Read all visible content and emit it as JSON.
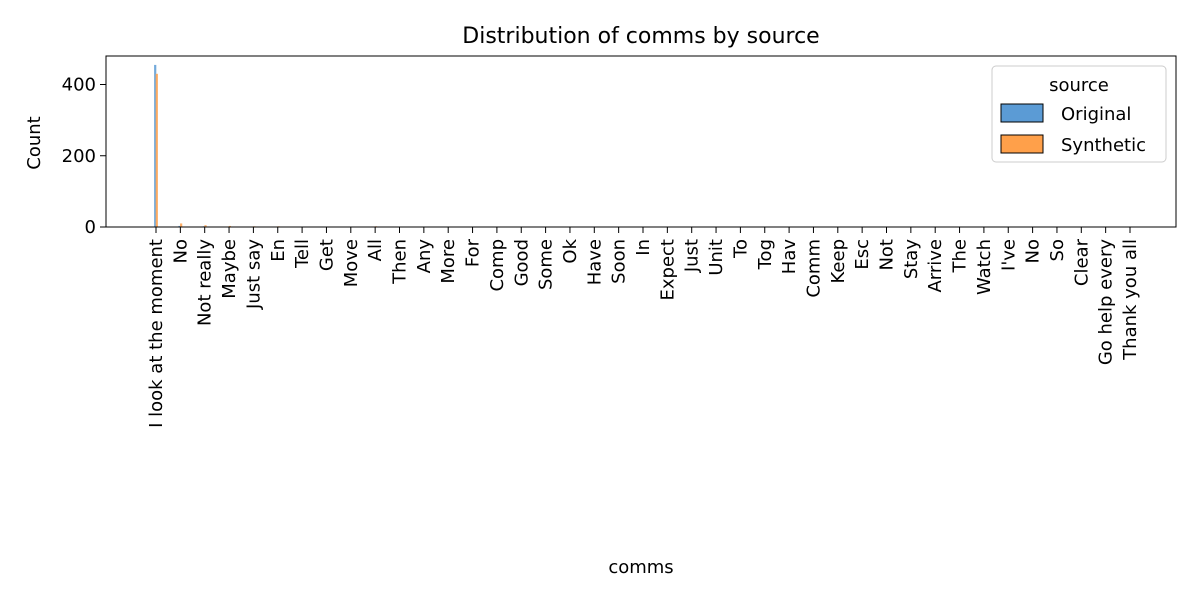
{
  "chart_data": {
    "type": "bar",
    "title": "Distribution of comms by source",
    "xlabel": "comms",
    "ylabel": "Count",
    "ylim": [
      0,
      480
    ],
    "y_ticks": [
      0,
      200,
      400
    ],
    "grid": false,
    "legend": {
      "title": "source",
      "placement": "top-right",
      "entries": [
        "Original",
        "Synthetic"
      ]
    },
    "colors": {
      "Original": "#5b9bd5",
      "Synthetic": "#ffa04a",
      "Original_line": "#4a7fae"
    },
    "note": "Nearly all mass is in the first category; remaining categories are near zero. Tick labels along the x-axis are dense and overlapping; only partially legible.",
    "categories": [
      "I look at the moment",
      "No",
      "Not really",
      "Maybe",
      "Just say",
      "En",
      "Tell",
      "Get",
      "Move",
      "All",
      "Then",
      "Any",
      "More",
      "For",
      "Comp",
      "Good",
      "Some",
      "Ok",
      "Have",
      "Soon",
      "In",
      "Expect",
      "Just",
      "Unit",
      "To",
      "Tog",
      "Hav",
      "Comm",
      "Keep",
      "Esc",
      "Not",
      "Stay",
      "Arrive",
      "The",
      "Watch",
      "I've",
      "No",
      "So",
      "Clear",
      "Go help every",
      "Thank you all"
    ],
    "series": [
      {
        "name": "Original",
        "values": [
          455,
          3,
          2,
          1,
          1,
          1,
          1,
          1,
          1,
          1,
          1,
          1,
          1,
          1,
          1,
          1,
          1,
          1,
          1,
          1,
          1,
          1,
          1,
          1,
          1,
          1,
          1,
          1,
          1,
          1,
          1,
          1,
          1,
          1,
          1,
          1,
          1,
          1,
          1,
          1,
          1
        ]
      },
      {
        "name": "Synthetic",
        "values": [
          430,
          10,
          5,
          3,
          2,
          2,
          1,
          1,
          1,
          2,
          1,
          1,
          1,
          1,
          1,
          1,
          1,
          1,
          1,
          1,
          1,
          1,
          1,
          1,
          1,
          1,
          1,
          1,
          1,
          1,
          1,
          1,
          1,
          1,
          1,
          1,
          1,
          1,
          1,
          1,
          1
        ]
      }
    ]
  }
}
